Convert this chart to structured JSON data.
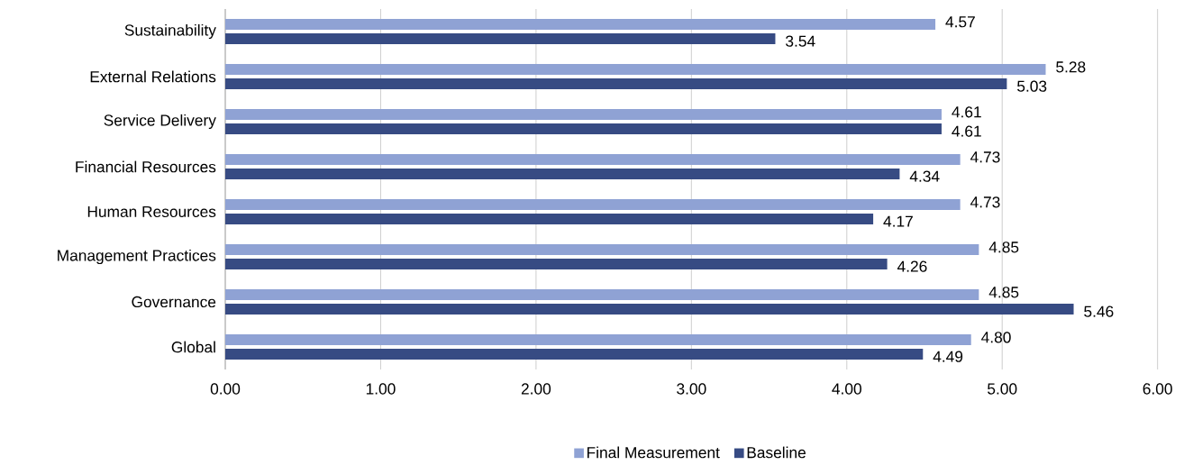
{
  "chart_data": {
    "type": "bar",
    "orientation": "horizontal",
    "categories": [
      "Sustainability",
      "External Relations",
      "Service Delivery",
      "Financial Resources",
      "Human Resources",
      "Management Practices",
      "Governance",
      "Global"
    ],
    "series": [
      {
        "name": "Final Measurement",
        "color": "#8fa2d4",
        "values": [
          4.57,
          5.28,
          4.61,
          4.73,
          4.73,
          4.85,
          4.85,
          4.8
        ],
        "value_labels": [
          "4.57",
          "5.28",
          "4.61",
          "4.73",
          "4.73",
          "4.85",
          "4.85",
          "4.80"
        ]
      },
      {
        "name": "Baseline",
        "color": "#374b83",
        "values": [
          3.54,
          5.03,
          4.61,
          4.34,
          4.17,
          4.26,
          5.46,
          4.49
        ],
        "value_labels": [
          "3.54",
          "5.03",
          "4.61",
          "4.34",
          "4.17",
          "4.26",
          "5.46",
          "4.49"
        ]
      }
    ],
    "xlim": [
      0,
      6
    ],
    "xticks": [
      {
        "value": 0,
        "label": "0.00"
      },
      {
        "value": 1,
        "label": "1.00"
      },
      {
        "value": 2,
        "label": "2.00"
      },
      {
        "value": 3,
        "label": "3.00"
      },
      {
        "value": 4,
        "label": "4.00"
      },
      {
        "value": 5,
        "label": "5.00"
      },
      {
        "value": 6,
        "label": "6.00"
      }
    ],
    "grid": "x",
    "legend": "bottom"
  }
}
